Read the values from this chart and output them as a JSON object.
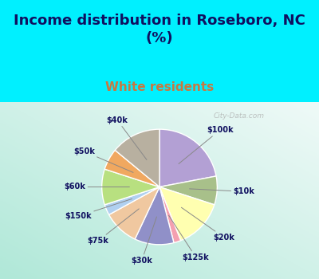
{
  "title": "Income distribution in Roseboro, NC\n(%)",
  "subtitle": "White residents",
  "labels": [
    "$100k",
    "$10k",
    "$20k",
    "$125k",
    "$30k",
    "$75k",
    "$150k",
    "$60k",
    "$50k",
    "$40k"
  ],
  "values": [
    22,
    8,
    14,
    2,
    11,
    10,
    3,
    10,
    6,
    14
  ],
  "colors": [
    "#b3a0d4",
    "#a8c08a",
    "#ffffb0",
    "#f4a0b0",
    "#9090c8",
    "#f0c8a0",
    "#b0d0f0",
    "#b8e080",
    "#f0a860",
    "#b8b0a0"
  ],
  "bg_color_top": "#00f0ff",
  "title_fontsize": 13,
  "subtitle_fontsize": 11,
  "subtitle_color": "#c87840",
  "watermark": "City-Data.com",
  "chart_bg_left": "#b0e8d8",
  "chart_bg_right": "#f0faf8"
}
